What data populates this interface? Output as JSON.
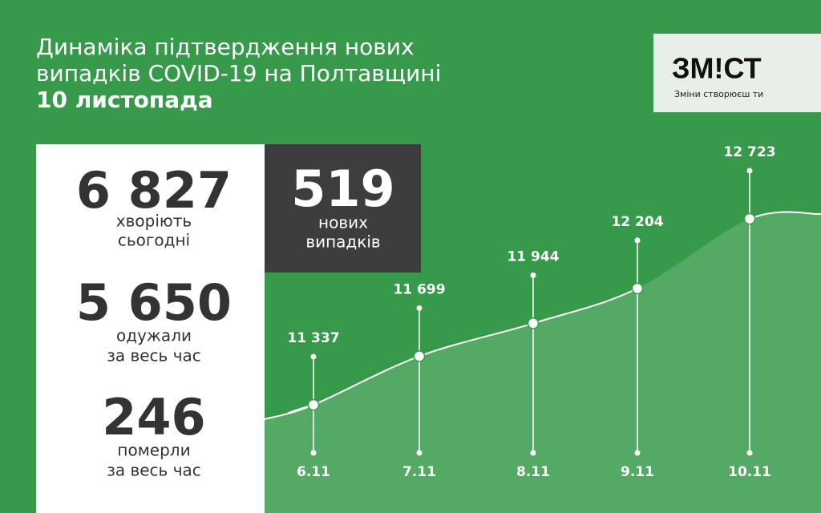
{
  "header": {
    "title_lines": [
      "Динаміка підтвердження нових",
      "випадків COVID-19 на Полтавщині"
    ],
    "date": "10 листопада"
  },
  "logo": {
    "name": "ЗМ!СТ",
    "slogan": "Зміни створюєш ти"
  },
  "stats": [
    {
      "value": "6 827",
      "label_lines": [
        "хворіють",
        "сьогодні"
      ]
    },
    {
      "value": "5 650",
      "label_lines": [
        "одужали",
        "за весь час"
      ]
    },
    {
      "value": "246",
      "label_lines": [
        "померли",
        "за весь час"
      ]
    }
  ],
  "new_cases": {
    "value": "519",
    "label_lines": [
      "нових",
      "випадків"
    ]
  },
  "chart_data": {
    "type": "line",
    "categories": [
      "6.11",
      "7.11",
      "8.11",
      "9.11",
      "10.11"
    ],
    "values": [
      11337,
      11699,
      11944,
      12204,
      12723
    ],
    "value_labels": [
      "11 337",
      "11 699",
      "11 944",
      "12 204",
      "12 723"
    ],
    "color": "#ffffff"
  }
}
